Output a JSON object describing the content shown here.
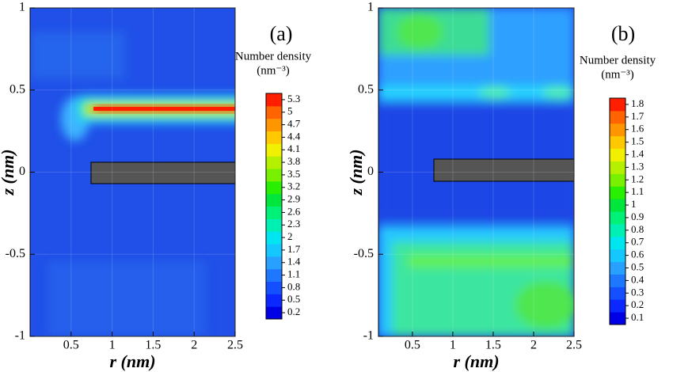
{
  "chart_data": [
    {
      "type": "contour",
      "title": "(a)",
      "colorbar_title": "Number density",
      "colorbar_unit": "(nm⁻³)",
      "x_label": "r (nm)",
      "y_label": "z (nm)",
      "xlim": [
        0,
        2.5
      ],
      "ylim": [
        -1,
        1
      ],
      "xticks": [
        0.5,
        1,
        1.5,
        2,
        2.5
      ],
      "yticks": [
        -1,
        -0.5,
        0,
        0.5,
        1
      ],
      "grid": true,
      "colorbar": {
        "levels": [
          0.2,
          0.5,
          0.8,
          1.1,
          1.4,
          1.7,
          2,
          2.3,
          2.6,
          2.9,
          3.2,
          3.5,
          3.8,
          4.1,
          4.4,
          4.7,
          5,
          5.3
        ],
        "colors": [
          "#0000e6",
          "#0a28ff",
          "#1450ff",
          "#1e78ff",
          "#28a0ff",
          "#14c8ff",
          "#00e6f0",
          "#00f0b4",
          "#00f078",
          "#00e63c",
          "#28f000",
          "#78f000",
          "#b4f000",
          "#f0f000",
          "#ffc800",
          "#ff9600",
          "#ff6400",
          "#ff1e00"
        ]
      }
    },
    {
      "type": "contour",
      "title": "(b)",
      "colorbar_title": "Number density",
      "colorbar_unit": "(nm⁻³)",
      "x_label": "r (nm)",
      "y_label": "z (nm)",
      "xlim": [
        0.08,
        2.5
      ],
      "ylim": [
        -1,
        1
      ],
      "xticks": [
        0.5,
        1,
        1.5,
        2,
        2.5
      ],
      "yticks": [
        -1,
        -0.5,
        0,
        0.5,
        1
      ],
      "grid": true,
      "colorbar": {
        "levels": [
          0.1,
          0.2,
          0.3,
          0.4,
          0.5,
          0.6,
          0.7,
          0.8,
          0.9,
          1,
          1.1,
          1.2,
          1.3,
          1.4,
          1.5,
          1.6,
          1.7,
          1.8
        ],
        "colors": [
          "#0000e6",
          "#0a28ff",
          "#1450ff",
          "#1e78ff",
          "#28a0ff",
          "#14c8ff",
          "#00e6f0",
          "#00f0b4",
          "#00f078",
          "#00e63c",
          "#28f000",
          "#78f000",
          "#b4f000",
          "#f0f000",
          "#ffc800",
          "#ff9600",
          "#ff6400",
          "#ff1e00"
        ]
      }
    }
  ]
}
